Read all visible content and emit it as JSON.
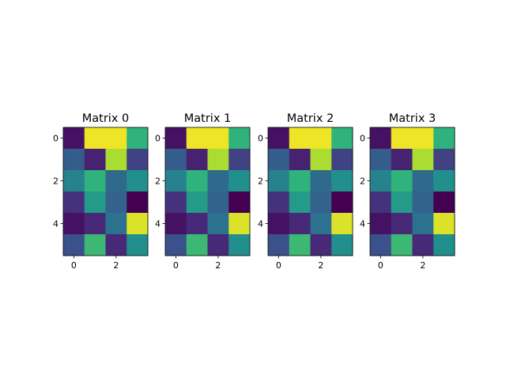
{
  "chart_data": [
    {
      "type": "heatmap",
      "title": "Matrix 0",
      "rows": 6,
      "cols": 4,
      "values": [
        [
          0.05,
          0.98,
          0.98,
          0.65
        ],
        [
          0.3,
          0.1,
          0.88,
          0.2
        ],
        [
          0.45,
          0.65,
          0.35,
          0.5
        ],
        [
          0.15,
          0.55,
          0.32,
          0.0
        ],
        [
          0.05,
          0.12,
          0.38,
          0.95
        ],
        [
          0.25,
          0.68,
          0.12,
          0.5
        ]
      ],
      "x_ticks": [
        "0",
        "2"
      ],
      "y_ticks": [
        "0",
        "2",
        "4"
      ],
      "colormap": "viridis"
    },
    {
      "type": "heatmap",
      "title": "Matrix 1",
      "rows": 6,
      "cols": 4,
      "values": [
        [
          0.05,
          0.98,
          0.98,
          0.65
        ],
        [
          0.3,
          0.1,
          0.88,
          0.2
        ],
        [
          0.45,
          0.65,
          0.35,
          0.5
        ],
        [
          0.15,
          0.55,
          0.32,
          0.0
        ],
        [
          0.05,
          0.12,
          0.38,
          0.95
        ],
        [
          0.25,
          0.68,
          0.12,
          0.5
        ]
      ],
      "x_ticks": [
        "0",
        "2"
      ],
      "y_ticks": [
        "0",
        "2",
        "4"
      ],
      "colormap": "viridis"
    },
    {
      "type": "heatmap",
      "title": "Matrix 2",
      "rows": 6,
      "cols": 4,
      "values": [
        [
          0.05,
          0.98,
          0.98,
          0.65
        ],
        [
          0.3,
          0.1,
          0.88,
          0.2
        ],
        [
          0.45,
          0.65,
          0.35,
          0.5
        ],
        [
          0.15,
          0.55,
          0.32,
          0.0
        ],
        [
          0.05,
          0.12,
          0.38,
          0.95
        ],
        [
          0.25,
          0.68,
          0.12,
          0.5
        ]
      ],
      "x_ticks": [
        "0",
        "2"
      ],
      "y_ticks": [
        "0",
        "2",
        "4"
      ],
      "colormap": "viridis"
    },
    {
      "type": "heatmap",
      "title": "Matrix 3",
      "rows": 6,
      "cols": 4,
      "values": [
        [
          0.05,
          0.98,
          0.98,
          0.65
        ],
        [
          0.3,
          0.1,
          0.88,
          0.2
        ],
        [
          0.45,
          0.65,
          0.35,
          0.5
        ],
        [
          0.15,
          0.55,
          0.32,
          0.0
        ],
        [
          0.05,
          0.12,
          0.38,
          0.95
        ],
        [
          0.25,
          0.68,
          0.12,
          0.5
        ]
      ],
      "x_ticks": [
        "0",
        "2"
      ],
      "y_ticks": [
        "0",
        "2",
        "4"
      ],
      "colormap": "viridis"
    }
  ]
}
